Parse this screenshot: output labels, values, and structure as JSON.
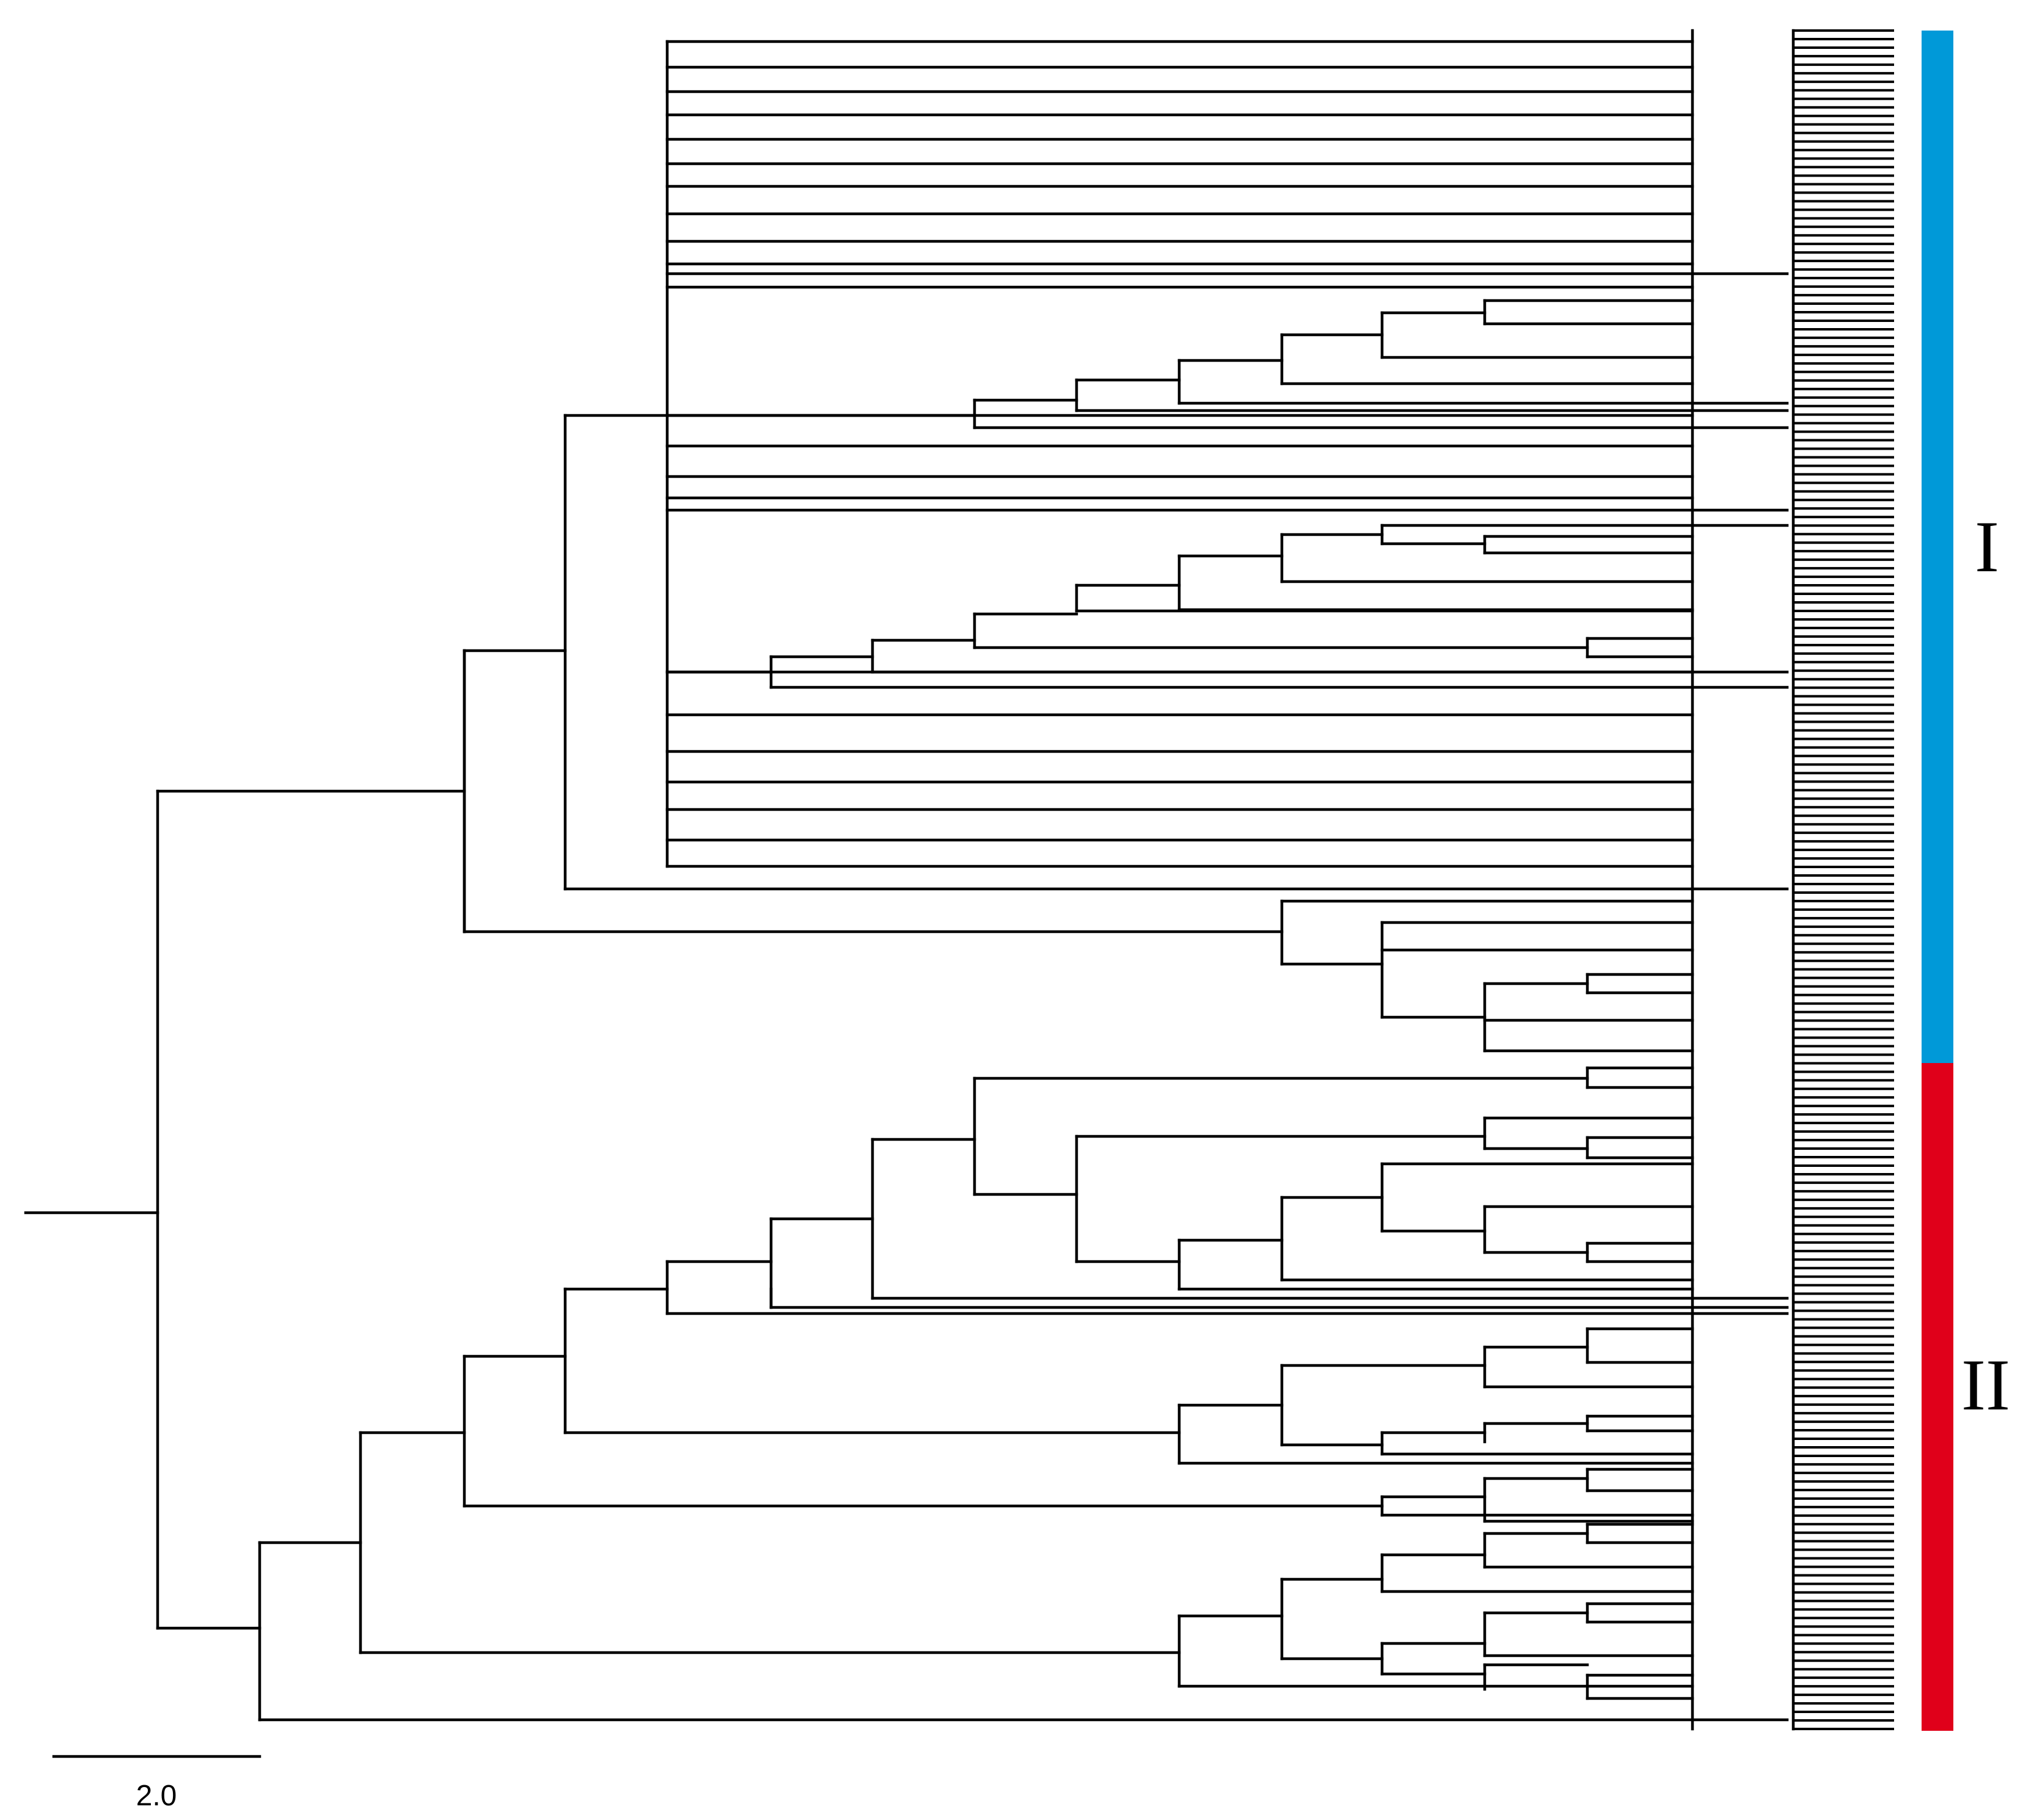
{
  "figure": {
    "type": "phylogenetic-tree",
    "clades": [
      {
        "id": "I",
        "label": "I",
        "color": "#0099d8"
      },
      {
        "id": "II",
        "label": "II",
        "color": "#e0001a"
      }
    ],
    "scale_bar": {
      "value": 2.0,
      "label": "2.0"
    },
    "tip_count": 200
  }
}
